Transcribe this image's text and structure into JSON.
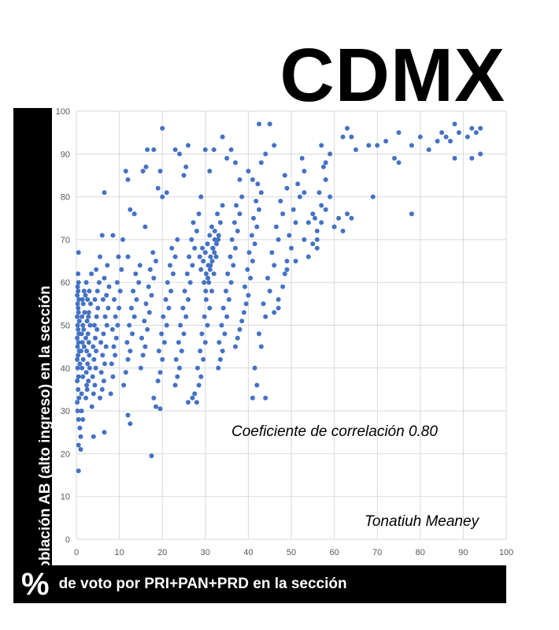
{
  "title": "CDMX",
  "colors": {
    "marker": "#4472c4",
    "grid": "#d9d9d9",
    "band": "#000000"
  },
  "annotations": {
    "correlation": "Coeficiente de correlación 0.80",
    "author": "Tonatiuh Meaney"
  },
  "chart_data": {
    "type": "scatter",
    "title": "CDMX",
    "xlabel_symbol": "%",
    "xlabel": "de voto por PRI+PAN+PRD en la sección",
    "ylabel": "de población AB (alto ingreso) en la sección",
    "xlim": [
      0,
      100
    ],
    "ylim": [
      0,
      100
    ],
    "xticks": [
      "0",
      "10",
      "20",
      "30",
      "40",
      "50",
      "60",
      "70",
      "80",
      "90",
      "100"
    ],
    "yticks": [
      "0",
      "10",
      "20",
      "30",
      "40",
      "50",
      "60",
      "70",
      "80",
      "90",
      "100"
    ],
    "grid": true,
    "legend": "none",
    "correlation": 0.8,
    "points": [
      [
        0.5,
        16
      ],
      [
        1,
        21
      ],
      [
        0.5,
        22
      ],
      [
        1,
        24
      ],
      [
        0.8,
        26
      ],
      [
        0.5,
        28
      ],
      [
        0.3,
        30
      ],
      [
        0.2,
        32
      ],
      [
        0.6,
        33
      ],
      [
        0.4,
        35
      ],
      [
        0.2,
        37
      ],
      [
        0.5,
        38
      ],
      [
        0.3,
        40
      ],
      [
        0.8,
        41
      ],
      [
        0.2,
        42
      ],
      [
        0.4,
        43
      ],
      [
        0.7,
        44
      ],
      [
        0.3,
        45
      ],
      [
        0.5,
        46
      ],
      [
        0.2,
        47
      ],
      [
        0.6,
        48
      ],
      [
        0.4,
        49
      ],
      [
        0.3,
        50
      ],
      [
        0.7,
        51
      ],
      [
        0.2,
        52
      ],
      [
        0.5,
        53
      ],
      [
        0.4,
        54
      ],
      [
        0.3,
        55
      ],
      [
        0.6,
        56
      ],
      [
        0.2,
        57
      ],
      [
        0.4,
        58
      ],
      [
        0.3,
        59
      ],
      [
        0.5,
        60
      ],
      [
        0.4,
        62
      ],
      [
        0.5,
        67
      ],
      [
        1.2,
        34
      ],
      [
        1.5,
        38
      ],
      [
        1.3,
        40
      ],
      [
        1.6,
        42
      ],
      [
        1.1,
        44
      ],
      [
        1.8,
        45
      ],
      [
        1.4,
        46
      ],
      [
        1.2,
        48
      ],
      [
        1.7,
        49
      ],
      [
        1.5,
        50
      ],
      [
        1.3,
        52
      ],
      [
        1.9,
        53
      ],
      [
        1.6,
        55
      ],
      [
        1.4,
        56
      ],
      [
        2.1,
        57
      ],
      [
        1.8,
        58
      ],
      [
        1.2,
        30
      ],
      [
        1.5,
        28
      ],
      [
        2.2,
        33
      ],
      [
        2.5,
        35
      ],
      [
        2.8,
        37
      ],
      [
        2.3,
        39
      ],
      [
        2.6,
        41
      ],
      [
        3.0,
        43
      ],
      [
        2.4,
        44
      ],
      [
        2.9,
        46
      ],
      [
        2.2,
        47
      ],
      [
        2.7,
        48
      ],
      [
        3.2,
        50
      ],
      [
        2.5,
        51
      ],
      [
        2.9,
        53
      ],
      [
        3.3,
        55
      ],
      [
        2.6,
        56
      ],
      [
        3.0,
        58
      ],
      [
        2.3,
        60
      ],
      [
        3.5,
        62
      ],
      [
        2.8,
        52
      ],
      [
        3.1,
        40
      ],
      [
        2.4,
        36
      ],
      [
        3.6,
        31
      ],
      [
        4.0,
        34
      ],
      [
        4.3,
        36
      ],
      [
        3.8,
        38
      ],
      [
        4.5,
        40
      ],
      [
        4.1,
        42
      ],
      [
        4.6,
        44
      ],
      [
        3.9,
        45
      ],
      [
        4.4,
        47
      ],
      [
        4.8,
        49
      ],
      [
        4.2,
        50
      ],
      [
        4.7,
        52
      ],
      [
        5.0,
        54
      ],
      [
        4.3,
        56
      ],
      [
        4.9,
        58
      ],
      [
        5.3,
        60
      ],
      [
        4.6,
        63
      ],
      [
        5.5,
        66
      ],
      [
        4.0,
        24
      ],
      [
        6.5,
        25
      ],
      [
        5.5,
        33
      ],
      [
        6.0,
        35
      ],
      [
        6.4,
        37
      ],
      [
        5.8,
        39
      ],
      [
        6.6,
        41
      ],
      [
        6.1,
        43
      ],
      [
        6.9,
        45
      ],
      [
        5.7,
        46
      ],
      [
        6.3,
        48
      ],
      [
        7.1,
        50
      ],
      [
        6.7,
        52
      ],
      [
        7.4,
        54
      ],
      [
        6.2,
        56
      ],
      [
        7.0,
        57
      ],
      [
        7.6,
        59
      ],
      [
        6.5,
        61
      ],
      [
        7.2,
        64
      ],
      [
        6.0,
        71
      ],
      [
        6.5,
        81
      ],
      [
        8.0,
        34
      ],
      [
        8.5,
        38
      ],
      [
        8.2,
        41
      ],
      [
        9.0,
        43
      ],
      [
        8.7,
        45
      ],
      [
        9.3,
        47
      ],
      [
        8.4,
        49
      ],
      [
        9.6,
        50
      ],
      [
        9.1,
        52
      ],
      [
        9.9,
        54
      ],
      [
        8.8,
        56
      ],
      [
        10.2,
        58
      ],
      [
        9.5,
        60
      ],
      [
        10.5,
        63
      ],
      [
        9.8,
        66
      ],
      [
        10.8,
        70
      ],
      [
        8.5,
        71
      ],
      [
        12.0,
        29
      ],
      [
        12.5,
        27
      ],
      [
        11,
        36
      ],
      [
        11.5,
        39
      ],
      [
        12,
        42
      ],
      [
        12.5,
        44
      ],
      [
        11.8,
        46
      ],
      [
        13,
        48
      ],
      [
        12.3,
        50
      ],
      [
        13.5,
        52
      ],
      [
        12.8,
        54
      ],
      [
        14,
        56
      ],
      [
        13.2,
        58
      ],
      [
        14.5,
        60
      ],
      [
        13.8,
        62
      ],
      [
        14.8,
        64
      ],
      [
        12,
        66
      ],
      [
        12.5,
        77
      ],
      [
        13.5,
        76
      ],
      [
        11.5,
        86
      ],
      [
        12.0,
        84
      ],
      [
        15,
        40
      ],
      [
        15.5,
        43
      ],
      [
        16,
        45
      ],
      [
        15.2,
        47
      ],
      [
        16.5,
        49
      ],
      [
        15.8,
        51
      ],
      [
        17,
        53
      ],
      [
        16.2,
        55
      ],
      [
        17.5,
        57
      ],
      [
        16.8,
        59
      ],
      [
        18,
        61
      ],
      [
        17.2,
        63
      ],
      [
        18.5,
        65
      ],
      [
        17.8,
        67
      ],
      [
        16,
        73
      ],
      [
        15.5,
        86
      ],
      [
        16.2,
        87
      ],
      [
        16.5,
        91
      ],
      [
        18,
        91
      ],
      [
        17.5,
        19.5
      ],
      [
        18,
        33
      ],
      [
        18.5,
        31
      ],
      [
        19.5,
        30.5
      ],
      [
        19,
        37
      ],
      [
        19.5,
        39
      ],
      [
        20,
        42
      ],
      [
        19.2,
        44
      ],
      [
        20.5,
        46
      ],
      [
        19.8,
        48
      ],
      [
        21,
        50
      ],
      [
        20.2,
        52
      ],
      [
        21.5,
        54
      ],
      [
        20.8,
        56
      ],
      [
        22,
        58
      ],
      [
        21.2,
        60
      ],
      [
        22.5,
        62
      ],
      [
        21.8,
        64
      ],
      [
        23,
        66
      ],
      [
        22.2,
        68
      ],
      [
        23.5,
        70
      ],
      [
        19,
        82
      ],
      [
        20,
        80
      ],
      [
        21,
        81
      ],
      [
        19.5,
        86
      ],
      [
        20,
        96
      ],
      [
        23,
        91
      ],
      [
        23,
        36
      ],
      [
        23.5,
        38
      ],
      [
        24,
        40
      ],
      [
        23.2,
        42
      ],
      [
        24.5,
        44
      ],
      [
        23.8,
        46
      ],
      [
        25,
        48
      ],
      [
        24.2,
        50
      ],
      [
        25.5,
        52
      ],
      [
        24.8,
        54
      ],
      [
        26,
        56
      ],
      [
        25.2,
        58
      ],
      [
        26.5,
        60
      ],
      [
        25.8,
        62
      ],
      [
        27,
        64
      ],
      [
        26.2,
        66
      ],
      [
        27.5,
        68
      ],
      [
        26.8,
        70
      ],
      [
        28,
        72
      ],
      [
        27.2,
        74
      ],
      [
        28.5,
        76
      ],
      [
        25,
        85
      ],
      [
        26,
        92
      ],
      [
        24,
        90
      ],
      [
        25.5,
        87
      ],
      [
        26,
        32
      ],
      [
        27,
        33
      ],
      [
        28,
        32
      ],
      [
        27.5,
        34
      ],
      [
        28.5,
        36
      ],
      [
        29,
        38
      ],
      [
        28.2,
        40
      ],
      [
        29.5,
        42
      ],
      [
        28.8,
        44
      ],
      [
        30,
        46
      ],
      [
        29.2,
        48
      ],
      [
        30.5,
        50
      ],
      [
        29.8,
        52
      ],
      [
        31,
        54
      ],
      [
        30.2,
        56
      ],
      [
        31.5,
        58
      ],
      [
        30.8,
        60
      ],
      [
        32,
        62
      ],
      [
        31.2,
        64
      ],
      [
        32.5,
        66
      ],
      [
        31.8,
        68
      ],
      [
        33,
        70
      ],
      [
        32.2,
        72
      ],
      [
        33.5,
        74
      ],
      [
        32.8,
        76
      ],
      [
        34,
        78
      ],
      [
        30,
        91
      ],
      [
        31,
        86
      ],
      [
        32,
        91
      ],
      [
        29,
        80
      ],
      [
        29,
        63
      ],
      [
        29.5,
        65
      ],
      [
        30,
        67
      ],
      [
        30.5,
        69
      ],
      [
        31,
        71
      ],
      [
        31.5,
        73
      ],
      [
        30.2,
        62
      ],
      [
        30.7,
        64
      ],
      [
        31.2,
        66
      ],
      [
        31.7,
        68
      ],
      [
        32.2,
        70
      ],
      [
        29.7,
        60
      ],
      [
        30.1,
        58
      ],
      [
        30.6,
        61
      ],
      [
        31.1,
        63
      ],
      [
        31.6,
        65
      ],
      [
        32.1,
        67
      ],
      [
        32.6,
        69
      ],
      [
        33.1,
        71
      ],
      [
        28.7,
        66
      ],
      [
        29.3,
        68
      ],
      [
        33,
        40
      ],
      [
        33.5,
        42
      ],
      [
        34,
        44
      ],
      [
        33.2,
        46
      ],
      [
        34.5,
        48
      ],
      [
        33.8,
        50
      ],
      [
        35,
        52
      ],
      [
        34.2,
        54
      ],
      [
        35.5,
        56
      ],
      [
        34.8,
        58
      ],
      [
        36,
        60
      ],
      [
        35.2,
        62
      ],
      [
        36.5,
        64
      ],
      [
        35.8,
        66
      ],
      [
        37,
        68
      ],
      [
        36.2,
        70
      ],
      [
        37.5,
        72
      ],
      [
        36.8,
        74
      ],
      [
        38,
        76
      ],
      [
        37.2,
        78
      ],
      [
        38.5,
        80
      ],
      [
        34,
        94
      ],
      [
        35,
        89
      ],
      [
        36,
        91
      ],
      [
        37,
        88
      ],
      [
        38,
        84
      ],
      [
        37,
        45
      ],
      [
        37.5,
        47
      ],
      [
        38,
        49
      ],
      [
        38.5,
        51
      ],
      [
        39,
        53
      ],
      [
        39.5,
        55
      ],
      [
        40,
        57
      ],
      [
        39.2,
        59
      ],
      [
        40.5,
        61
      ],
      [
        39.8,
        63
      ],
      [
        41,
        65
      ],
      [
        40.2,
        67
      ],
      [
        41.5,
        69
      ],
      [
        40.8,
        71
      ],
      [
        42,
        73
      ],
      [
        41.2,
        75
      ],
      [
        42.5,
        77
      ],
      [
        41.8,
        79
      ],
      [
        43,
        81
      ],
      [
        42.2,
        83
      ],
      [
        40,
        86
      ],
      [
        41,
        84
      ],
      [
        41,
        33
      ],
      [
        42,
        36
      ],
      [
        41.5,
        40
      ],
      [
        43,
        45
      ],
      [
        42.5,
        48
      ],
      [
        44,
        52
      ],
      [
        43.5,
        55
      ],
      [
        45,
        58
      ],
      [
        44.5,
        61
      ],
      [
        46,
        64
      ],
      [
        45.5,
        67
      ],
      [
        47,
        70
      ],
      [
        46.5,
        73
      ],
      [
        48,
        76
      ],
      [
        47.5,
        79
      ],
      [
        49,
        82
      ],
      [
        48.5,
        85
      ],
      [
        44,
        33
      ],
      [
        42.5,
        97
      ],
      [
        45,
        97
      ],
      [
        44,
        90
      ],
      [
        46,
        92
      ],
      [
        43,
        88
      ],
      [
        46,
        53
      ],
      [
        47,
        56
      ],
      [
        48,
        59
      ],
      [
        48.5,
        62
      ],
      [
        49,
        65
      ],
      [
        50,
        68
      ],
      [
        49.5,
        71
      ],
      [
        51,
        74
      ],
      [
        50.5,
        77
      ],
      [
        52,
        80
      ],
      [
        51.5,
        83
      ],
      [
        53,
        86
      ],
      [
        52.5,
        89
      ],
      [
        47,
        54
      ],
      [
        49,
        63
      ],
      [
        51,
        65
      ],
      [
        53,
        70
      ],
      [
        54,
        74
      ],
      [
        55,
        76
      ],
      [
        53,
        81
      ],
      [
        54,
        66
      ],
      [
        55,
        69
      ],
      [
        56,
        72
      ],
      [
        55.5,
        75
      ],
      [
        57,
        78
      ],
      [
        56.5,
        81
      ],
      [
        58,
        84
      ],
      [
        57.5,
        87
      ],
      [
        59,
        90
      ],
      [
        56,
        70
      ],
      [
        57,
        74
      ],
      [
        58,
        77
      ],
      [
        59,
        80
      ],
      [
        60,
        73
      ],
      [
        61,
        75
      ],
      [
        62,
        72
      ],
      [
        63,
        76
      ],
      [
        64,
        75
      ],
      [
        56,
        68
      ],
      [
        57,
        92
      ],
      [
        58,
        88
      ],
      [
        62,
        94
      ],
      [
        63,
        96
      ],
      [
        64,
        94
      ],
      [
        65,
        91
      ],
      [
        68,
        92
      ],
      [
        70,
        92
      ],
      [
        72,
        93
      ],
      [
        75,
        95
      ],
      [
        74,
        89
      ],
      [
        75,
        88
      ],
      [
        78,
        92
      ],
      [
        80,
        94
      ],
      [
        82,
        91
      ],
      [
        84,
        93
      ],
      [
        85,
        95
      ],
      [
        86,
        94
      ],
      [
        87,
        93
      ],
      [
        88,
        97
      ],
      [
        89,
        95
      ],
      [
        91,
        94
      ],
      [
        92,
        96
      ],
      [
        93,
        95
      ],
      [
        94,
        96
      ],
      [
        92,
        89
      ],
      [
        94,
        90
      ],
      [
        88,
        89
      ],
      [
        69,
        80
      ],
      [
        78,
        76
      ]
    ]
  }
}
